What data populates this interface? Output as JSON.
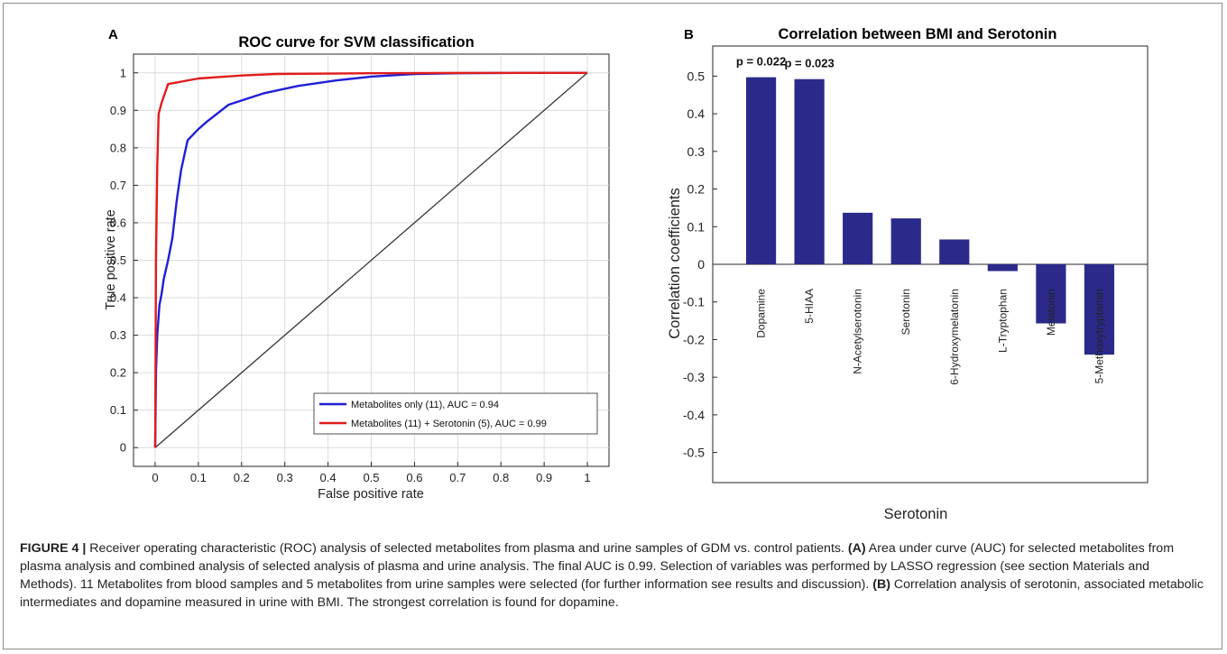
{
  "colors": {
    "series_blue": "#1f1fd6",
    "series_red": "#e01c1c",
    "diagonal": "#333333",
    "bar": "#2b2a8a",
    "axis": "#262626"
  },
  "panels": {
    "a_label": "A",
    "b_label": "B"
  },
  "chart_data": [
    {
      "type": "line",
      "title": "ROC curve for SVM classification",
      "xlabel": "False positive rate",
      "ylabel": "True positive rate",
      "xlim": [
        -0.05,
        1.05
      ],
      "ylim": [
        -0.05,
        1.05
      ],
      "xticks": [
        "0",
        "0.1",
        "0.2",
        "0.3",
        "0.4",
        "0.5",
        "0.6",
        "0.7",
        "0.8",
        "0.9",
        "1"
      ],
      "yticks": [
        "0",
        "0.1",
        "0.2",
        "0.3",
        "0.4",
        "0.5",
        "0.6",
        "0.7",
        "0.8",
        "0.9",
        "1"
      ],
      "grid": true,
      "legend_position": "bottom-right",
      "series": [
        {
          "name": "Metabolites only (11),  AUC = 0.94",
          "color": "#1f1fd6",
          "x": [
            0,
            0.002,
            0.005,
            0.01,
            0.015,
            0.02,
            0.03,
            0.04,
            0.05,
            0.06,
            0.075,
            0.1,
            0.12,
            0.17,
            0.25,
            0.33,
            0.42,
            0.5,
            0.6,
            0.7,
            0.85,
            1
          ],
          "y": [
            0,
            0.2,
            0.3,
            0.38,
            0.41,
            0.45,
            0.5,
            0.56,
            0.66,
            0.74,
            0.82,
            0.85,
            0.87,
            0.915,
            0.945,
            0.965,
            0.98,
            0.99,
            0.997,
            0.999,
            1,
            1
          ]
        },
        {
          "name": "Metabolites (11) + Serotonin (5),  AUC = 0.99",
          "color": "#e01c1c",
          "x": [
            0,
            0.002,
            0.005,
            0.008,
            0.015,
            0.03,
            0.1,
            0.2,
            0.28,
            0.5,
            0.75,
            1
          ],
          "y": [
            0,
            0.5,
            0.75,
            0.89,
            0.92,
            0.97,
            0.985,
            0.993,
            0.997,
            0.999,
            1,
            1
          ]
        },
        {
          "name": "",
          "color": "#333333",
          "x": [
            0,
            1
          ],
          "y": [
            0,
            1
          ]
        }
      ]
    },
    {
      "type": "bar",
      "title": "Correlation between BMI and Serotonin",
      "xlabel": "Serotonin",
      "ylabel": "Correlation coefficients",
      "ylim": [
        -0.58,
        0.58
      ],
      "yticks": [
        "-0.5",
        "-0.4",
        "-0.3",
        "-0.2",
        "-0.1",
        "0",
        "0.1",
        "0.2",
        "0.3",
        "0.4",
        "0.5"
      ],
      "categories": [
        "Dopamine",
        "5-HIAA",
        "N-Acetylserotonin",
        "Serotonin",
        "6-Hydroxymelatonin",
        "L-Tryptophan",
        "Melatonin",
        "5-Methoxytryptamin"
      ],
      "values": [
        0.497,
        0.492,
        0.137,
        0.122,
        0.066,
        -0.018,
        -0.157,
        -0.24
      ],
      "annotations": [
        {
          "category": "Dopamine",
          "text": "p = 0.022"
        },
        {
          "category": "5-HIAA",
          "text": "p = 0.023"
        }
      ],
      "grid": false
    }
  ],
  "caption": {
    "lead": "FIGURE 4 |",
    "part1": "Receiver operating characteristic (ROC) analysis of selected metabolites from plasma and urine samples of GDM vs. control patients.",
    "tag_a": "(A)",
    "part2": "Area under curve (AUC) for selected metabolites from plasma analysis and combined analysis of selected analysis of plasma and urine analysis. The final AUC is 0.99. Selection of variables was performed by LASSO regression (see section Materials and Methods). 11 Metabolites from blood samples and 5 metabolites from urine samples were selected (for further information see results and discussion).",
    "tag_b": "(B)",
    "part3": "Correlation analysis of serotonin, associated metabolic intermediates and dopamine measured in urine with BMI. The strongest correlation is found for dopamine."
  }
}
